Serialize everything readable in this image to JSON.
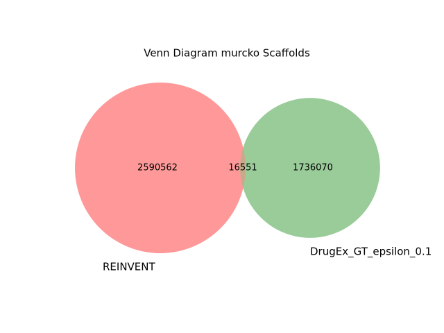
{
  "chart_data": {
    "type": "venn",
    "title": "Venn Diagram murcko Scaffolds",
    "sets": [
      {
        "name": "REINVENT",
        "color": "#ff9999",
        "value": 2590562
      },
      {
        "name": "DrugEx_GT_epsilon_0.1",
        "color": "#99cc99",
        "value": 1736070
      }
    ],
    "intersection": 16551,
    "intersection_color": "#c8a98a"
  }
}
